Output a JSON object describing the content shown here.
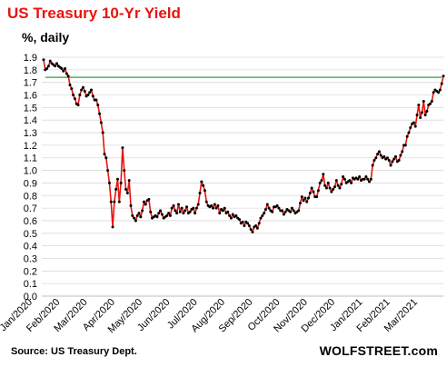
{
  "chart_data": {
    "type": "line",
    "title": "US Treasury  10-Yr Yield",
    "subtitle": "%, daily",
    "source": "Source: US Treasury Dept.",
    "brand": "WOLFSTREET.com",
    "ylim": [
      0,
      1.9
    ],
    "yticks": [
      "0.0",
      "0.1",
      "0.2",
      "0.3",
      "0.4",
      "0.5",
      "0.6",
      "0.7",
      "0.8",
      "0.9",
      "1.0",
      "1.1",
      "1.2",
      "1.3",
      "1.4",
      "1.5",
      "1.6",
      "1.7",
      "1.8",
      "1.9"
    ],
    "xticks": [
      "Jan/2020",
      "Feb/2020",
      "Mar/2020",
      "Apr/2020",
      "May/2020",
      "Jun/2020",
      "Jul/2020",
      "Aug/2020",
      "Sep/2020",
      "Oct/2020",
      "Nov/2020",
      "Dec/2020",
      "Jan/2021",
      "Feb/2021",
      "Mar/2021"
    ],
    "reference_line": 1.74,
    "colors": {
      "title": "#e8140c",
      "line": "#e8140c",
      "marker": "#000000",
      "reference": "#2e9e3a"
    },
    "series": [
      {
        "values": [
          1.88,
          1.8,
          1.81,
          1.83,
          1.87,
          1.85,
          1.84,
          1.83,
          1.85,
          1.83,
          1.82,
          1.81,
          1.79,
          1.81,
          1.77,
          1.75,
          1.68,
          1.65,
          1.6,
          1.57,
          1.53,
          1.52,
          1.6,
          1.64,
          1.66,
          1.63,
          1.59,
          1.6,
          1.62,
          1.64,
          1.59,
          1.56,
          1.56,
          1.52,
          1.45,
          1.38,
          1.3,
          1.13,
          1.1,
          1.0,
          0.9,
          0.75,
          0.55,
          0.75,
          0.85,
          0.93,
          0.75,
          0.9,
          1.18,
          1.0,
          0.85,
          0.82,
          0.92,
          0.72,
          0.64,
          0.62,
          0.6,
          0.64,
          0.66,
          0.63,
          0.68,
          0.75,
          0.73,
          0.76,
          0.77,
          0.67,
          0.62,
          0.63,
          0.64,
          0.63,
          0.66,
          0.68,
          0.65,
          0.62,
          0.63,
          0.64,
          0.66,
          0.64,
          0.7,
          0.72,
          0.68,
          0.66,
          0.73,
          0.67,
          0.7,
          0.66,
          0.68,
          0.71,
          0.66,
          0.67,
          0.69,
          0.7,
          0.66,
          0.7,
          0.73,
          0.82,
          0.91,
          0.88,
          0.84,
          0.75,
          0.72,
          0.71,
          0.72,
          0.7,
          0.73,
          0.7,
          0.72,
          0.66,
          0.69,
          0.68,
          0.7,
          0.66,
          0.67,
          0.64,
          0.62,
          0.65,
          0.63,
          0.64,
          0.62,
          0.61,
          0.58,
          0.59,
          0.56,
          0.59,
          0.58,
          0.56,
          0.53,
          0.51,
          0.55,
          0.56,
          0.54,
          0.58,
          0.62,
          0.64,
          0.66,
          0.69,
          0.73,
          0.7,
          0.68,
          0.67,
          0.71,
          0.71,
          0.72,
          0.7,
          0.68,
          0.68,
          0.65,
          0.67,
          0.69,
          0.68,
          0.67,
          0.7,
          0.68,
          0.66,
          0.67,
          0.68,
          0.74,
          0.79,
          0.76,
          0.78,
          0.75,
          0.78,
          0.82,
          0.86,
          0.83,
          0.79,
          0.79,
          0.84,
          0.9,
          0.92,
          0.97,
          0.88,
          0.86,
          0.9,
          0.86,
          0.83,
          0.85,
          0.87,
          0.92,
          0.88,
          0.86,
          0.89,
          0.95,
          0.93,
          0.9,
          0.91,
          0.92,
          0.9,
          0.94,
          0.93,
          0.94,
          0.93,
          0.95,
          0.92,
          0.93,
          0.93,
          0.95,
          0.93,
          0.91,
          0.93,
          1.04,
          1.08,
          1.1,
          1.13,
          1.15,
          1.12,
          1.1,
          1.11,
          1.09,
          1.1,
          1.08,
          1.04,
          1.07,
          1.09,
          1.11,
          1.07,
          1.08,
          1.12,
          1.15,
          1.2,
          1.2,
          1.27,
          1.3,
          1.34,
          1.37,
          1.38,
          1.35,
          1.44,
          1.52,
          1.42,
          1.46,
          1.55,
          1.44,
          1.47,
          1.52,
          1.53,
          1.55,
          1.62,
          1.64,
          1.63,
          1.62,
          1.64,
          1.69,
          1.75
        ]
      }
    ]
  }
}
